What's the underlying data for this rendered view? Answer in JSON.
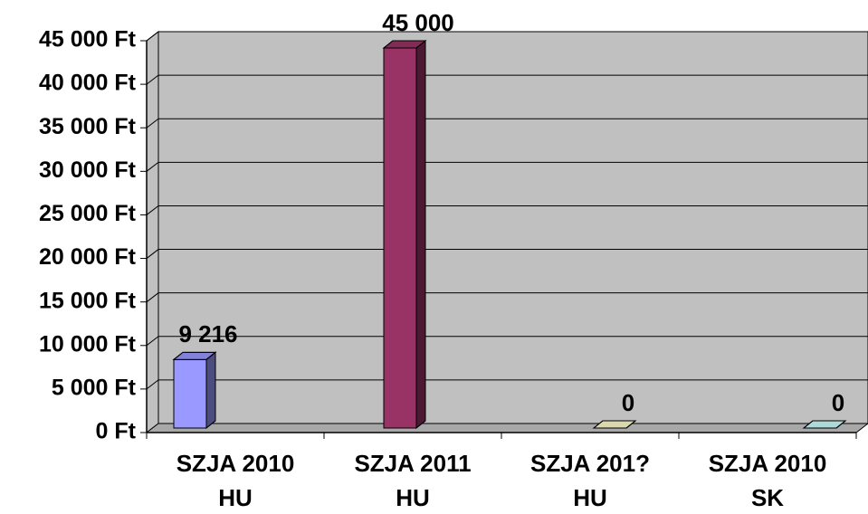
{
  "chart_data": {
    "type": "bar3d",
    "categories": [
      "SZJA 2010\nHU",
      "SZJA 2011\nHU",
      "SZJA 201?\nHU",
      "SZJA 2010\nSK"
    ],
    "values": [
      9216,
      45000,
      0,
      0
    ],
    "value_labels": [
      "9 216",
      "45 000",
      "0",
      "0"
    ],
    "colors": [
      "#9999ff",
      "#993366",
      "#ffffcc",
      "#ccffff"
    ],
    "ylim": [
      0,
      45000
    ],
    "yticks": [
      {
        "value": 0,
        "label": "0 Ft"
      },
      {
        "value": 5000,
        "label": "5 000 Ft"
      },
      {
        "value": 10000,
        "label": "10 000 Ft"
      },
      {
        "value": 15000,
        "label": "15 000 Ft"
      },
      {
        "value": 20000,
        "label": "20 000 Ft"
      },
      {
        "value": 25000,
        "label": "25 000 Ft"
      },
      {
        "value": 30000,
        "label": "30 000 Ft"
      },
      {
        "value": 35000,
        "label": "35 000 Ft"
      },
      {
        "value": 40000,
        "label": "40 000 Ft"
      },
      {
        "value": 45000,
        "label": "45 000 Ft"
      }
    ],
    "grid": true
  }
}
